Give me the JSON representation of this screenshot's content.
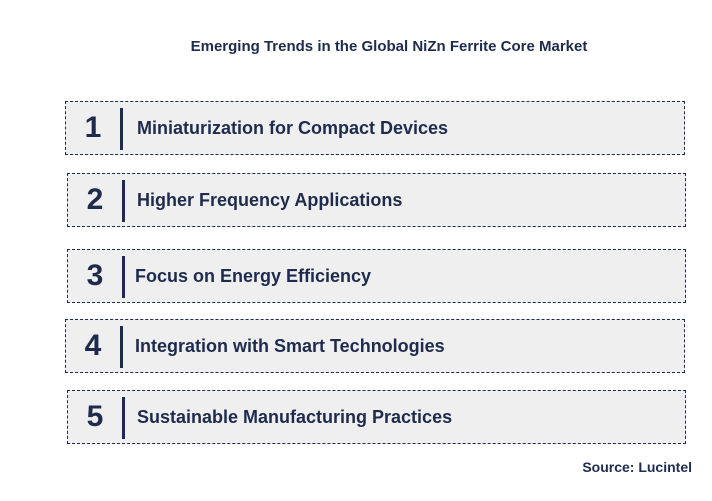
{
  "title": "Emerging Trends in the Global NiZn Ferrite Core Market",
  "trends": [
    {
      "number": "1",
      "label": "Miniaturization for Compact Devices"
    },
    {
      "number": "2",
      "label": "Higher Frequency Applications"
    },
    {
      "number": "3",
      "label": "Focus on Energy Efficiency"
    },
    {
      "number": "4",
      "label": "Integration with Smart Technologies"
    },
    {
      "number": "5",
      "label": "Sustainable Manufacturing Practices"
    }
  ],
  "source": "Source: Lucintel",
  "colors": {
    "text": "#1f2b4d",
    "box_fill": "#efefef",
    "box_border": "#1f2b4d"
  }
}
